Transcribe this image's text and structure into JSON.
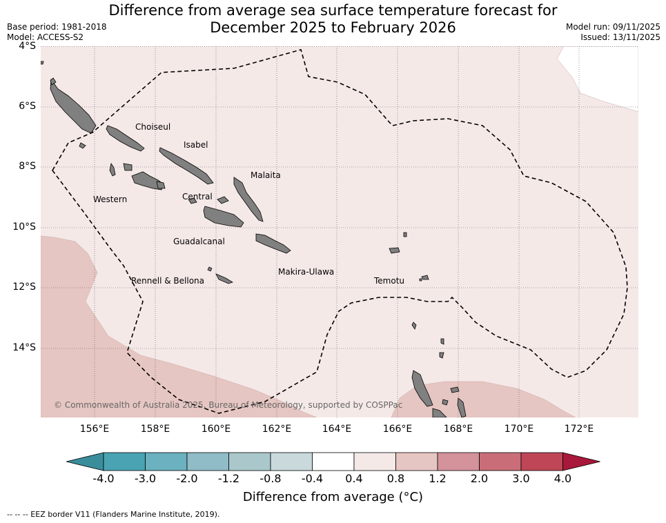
{
  "title": {
    "line1": "Difference from average sea surface temperature forecast for",
    "line2": "December 2025 to February 2026"
  },
  "meta": {
    "base_period": "Base period: 1981-2018",
    "model": "Model: ACCESS-S2",
    "model_run": "Model run: 09/11/2025",
    "issued": "Issued: 13/11/2025"
  },
  "axes": {
    "lat_labels": [
      "4°S",
      "6°S",
      "8°S",
      "10°S",
      "12°S",
      "14°S"
    ],
    "lon_labels": [
      "156°E",
      "158°E",
      "160°E",
      "162°E",
      "164°E",
      "166°E",
      "168°E",
      "170°E",
      "172°E"
    ]
  },
  "regions": {
    "choiseul": "Choiseul",
    "isabel": "Isabel",
    "malaita": "Malaita",
    "western": "Western",
    "central": "Central",
    "guadalcanal": "Guadalcanal",
    "makira": "Makira-Ulawa",
    "rennell": "Rennell & Bellona",
    "temotu": "Temotu"
  },
  "copyright": "© Commonwealth of Australia 2025, Bureau of Meteorology, supported by COSPPac",
  "colorbar": {
    "labels": [
      "-4.0",
      "-3.0",
      "-2.0",
      "-1.2",
      "-0.8",
      "-0.4",
      "0.4",
      "0.8",
      "1.2",
      "2.0",
      "3.0",
      "4.0"
    ],
    "colors": [
      "#3a8e9c",
      "#4aa3b3",
      "#6bb1bf",
      "#8fbcc6",
      "#aac8cc",
      "#c9d9dc",
      "#ffffff",
      "#f5e9e8",
      "#e6c6c2",
      "#d4929a",
      "#c96e78",
      "#bf4656",
      "#a8183a"
    ],
    "title": "Difference from average (°C)"
  },
  "legend": "--  --  -- EEZ border V11 (Flanders Marine Institute, 2019).",
  "palette": {
    "background": "#f5e9e8",
    "warm_region": "#e6c6c2",
    "land": "#808080",
    "eez_line": "#000000"
  }
}
